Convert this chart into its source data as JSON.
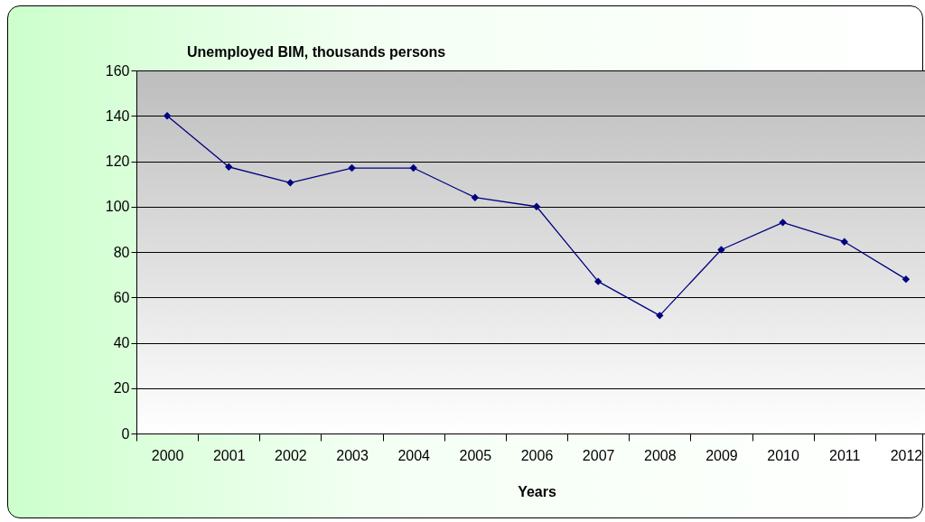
{
  "chart_data": {
    "type": "line",
    "title": "Unemployed BIM, thousands persons",
    "xlabel": "Years",
    "categories": [
      "2000",
      "2001",
      "2002",
      "2003",
      "2004",
      "2005",
      "2006",
      "2007",
      "2008",
      "2009",
      "2010",
      "2011",
      "2012"
    ],
    "series": [
      {
        "color": "#000080",
        "values": [
          140,
          117.5,
          110.5,
          117,
          117,
          104,
          100,
          67,
          52,
          81,
          93,
          84.5,
          68
        ]
      }
    ],
    "ylim": [
      0,
      160
    ],
    "yticks": [
      0,
      20,
      40,
      60,
      80,
      100,
      120,
      140,
      160
    ],
    "grid": "y",
    "marker": "diamond",
    "line_style": "solid",
    "legend": false
  }
}
